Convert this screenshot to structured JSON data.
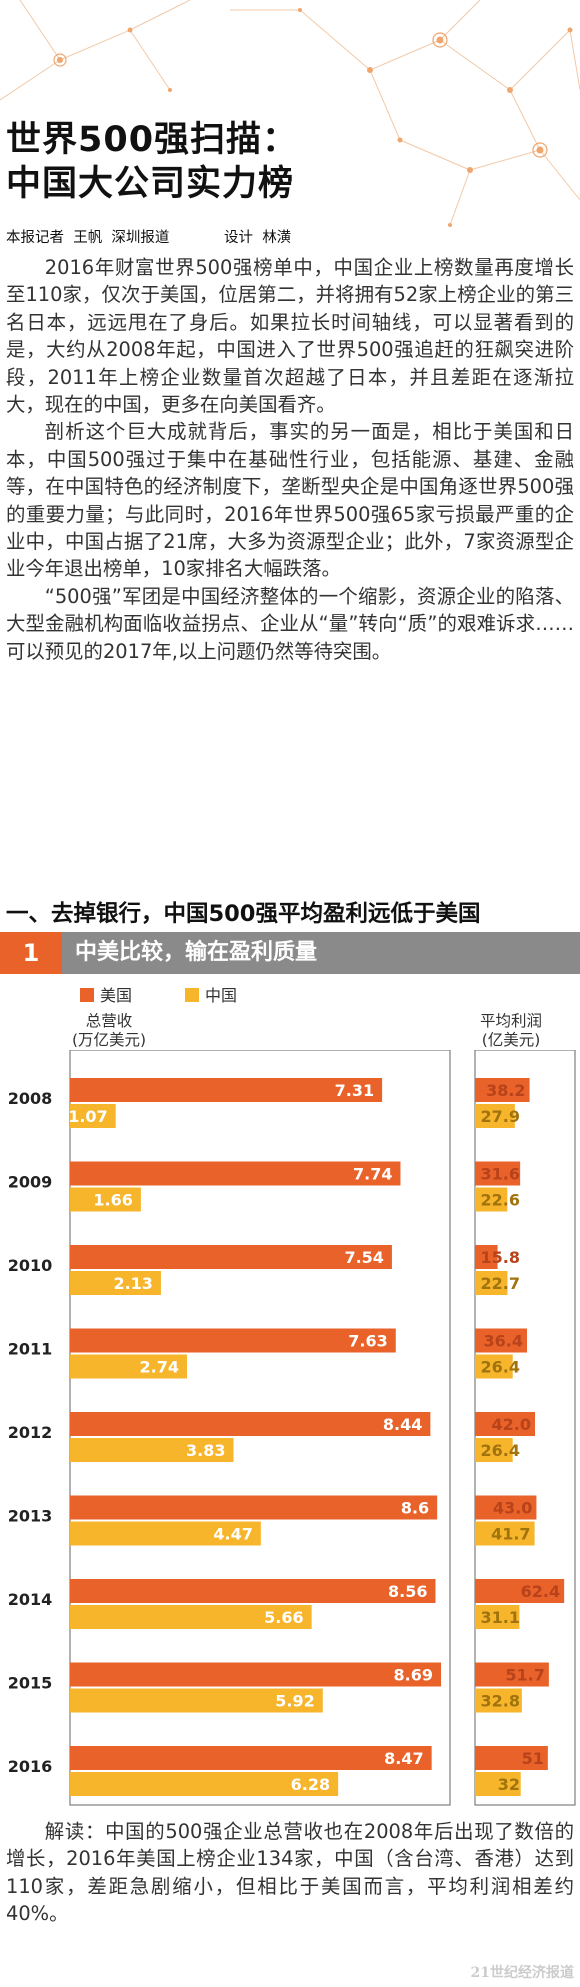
{
  "article": {
    "title_line1": "世界500强扫描：",
    "title_line2": "中国大公司实力榜",
    "byline_reporter": "本报记者  王帆  深圳报道",
    "byline_design": "设计  林潢",
    "paragraphs": [
      "2016年财富世界500强榜单中，中国企业上榜数量再度增长至110家，仅次于美国，位居第二，并将拥有52家上榜企业的第三名日本，远远甩在了身后。如果拉长时间轴线，可以显著看到的是，大约从2008年起，中国进入了世界500强追赶的狂飙突进阶段，2011年上榜企业数量首次超越了日本，并且差距在逐渐拉大，现在的中国，更多在向美国看齐。",
      "剖析这个巨大成就背后，事实的另一面是，相比于美国和日本，中国500强过于集中在基础性行业，包括能源、基建、金融等，在中国特色的经济制度下，垄断型央企是中国角逐世界500强的重要力量；与此同时，2016年世界500强65家亏损最严重的企业中，中国占据了21席，大多为资源型企业；此外，7家资源型企业今年退出榜单，10家排名大幅跌落。",
      "“500强”军团是中国经济整体的一个缩影，资源企业的陷落、大型金融机构面临收益拐点、企业从“量”转向“质”的艰难诉求……可以预见的2017年,以上问题仍然等待突围。"
    ],
    "section_title": "一、去掉银行，中国500强平均盈利远低于美国",
    "banner_number": "1",
    "banner_title": "中美比较，输在盈利质量",
    "interpretation": "解读：中国的500强企业总营收也在2008年后出现了数倍的增长，2016年美国上榜企业134家，中国（含台湾、香港）达到110家，差距急剧缩小，但相比于美国而言，平均利润相差约40%。",
    "watermark": "21世纪经济报道"
  },
  "colors": {
    "us": "#e8622a",
    "cn": "#f7b52c",
    "banner": "#8a8a8a"
  },
  "chart_data": {
    "type": "bar",
    "orientation": "horizontal",
    "categories": [
      "2008",
      "2009",
      "2010",
      "2011",
      "2012",
      "2013",
      "2014",
      "2015",
      "2016"
    ],
    "legend": [
      "美国",
      "中国"
    ],
    "panels": [
      {
        "label_line1": "总营收",
        "label_line2": "(万亿美元)",
        "series": [
          {
            "name": "美国",
            "values": [
              7.31,
              7.74,
              7.54,
              7.63,
              8.44,
              8.6,
              8.56,
              8.69,
              8.47
            ]
          },
          {
            "name": "中国",
            "values": [
              1.07,
              1.66,
              2.13,
              2.74,
              3.83,
              4.47,
              5.66,
              5.92,
              6.28
            ]
          }
        ]
      },
      {
        "label_line1": "平均利润",
        "label_line2": "(亿美元)",
        "series": [
          {
            "name": "美国",
            "values": [
              "38.2",
              "31.6",
              "15.8",
              "36.4",
              "42.0",
              "43.0",
              "62.4",
              "51.7",
              "51"
            ]
          },
          {
            "name": "中国",
            "values": [
              "27.9",
              "22.6",
              "22.7",
              "26.4",
              "26.4",
              "41.7",
              "31.1",
              "32.8",
              "32"
            ]
          }
        ]
      }
    ]
  }
}
